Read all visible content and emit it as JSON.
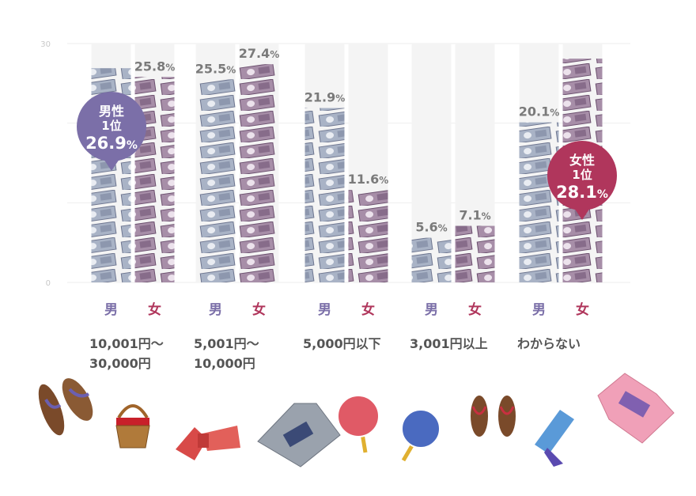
{
  "chart_data": {
    "type": "bar",
    "categories": [
      [
        "10,001円〜",
        "30,000円"
      ],
      [
        "5,001円〜",
        "10,000円"
      ],
      [
        "5,000円以下"
      ],
      [
        "3,001円以上"
      ],
      [
        "わからない"
      ]
    ],
    "series": [
      {
        "name": "男",
        "color": "#7b6fa8",
        "values": [
          26.9,
          25.5,
          21.9,
          5.6,
          20.1
        ]
      },
      {
        "name": "女",
        "color": "#b0365c",
        "values": [
          25.8,
          27.4,
          11.6,
          7.1,
          28.1
        ]
      }
    ],
    "ylim": [
      0,
      30
    ],
    "yticks": [
      "0",
      "30"
    ],
    "percent_sign": "%",
    "grid": true,
    "highlights": [
      {
        "series": 0,
        "category": 0,
        "lines": [
          "男性",
          "1位",
          "26.9"
        ],
        "color": "#7b6fa8"
      },
      {
        "series": 1,
        "category": 4,
        "lines": [
          "女性",
          "1位",
          "28.1"
        ],
        "color": "#b0365c"
      }
    ]
  },
  "decorations": [
    "geta-sandals-icon",
    "basket-icon",
    "obi-sash-icon",
    "yukata-grey-icon",
    "fan-red-icon",
    "fan-blue-icon",
    "geta-brown-icon",
    "obi-blue-icon",
    "yukata-pink-icon"
  ]
}
